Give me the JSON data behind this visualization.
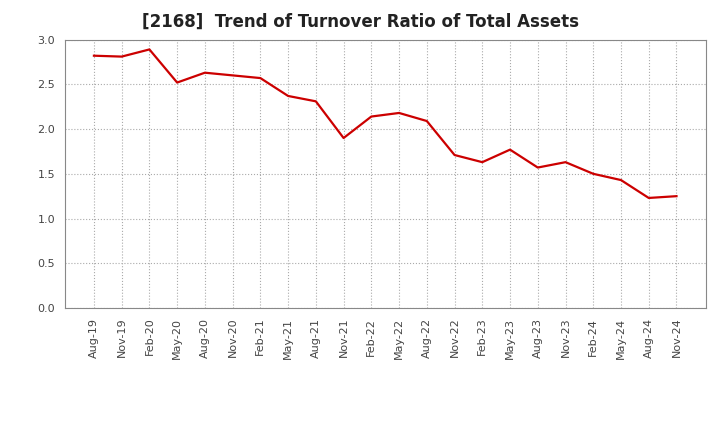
{
  "title": "[2168]  Trend of Turnover Ratio of Total Assets",
  "x_labels": [
    "Aug-19",
    "Nov-19",
    "Feb-20",
    "May-20",
    "Aug-20",
    "Nov-20",
    "Feb-21",
    "May-21",
    "Aug-21",
    "Nov-21",
    "Feb-22",
    "May-22",
    "Aug-22",
    "Nov-22",
    "Feb-23",
    "May-23",
    "Aug-23",
    "Nov-23",
    "Feb-24",
    "May-24",
    "Aug-24",
    "Nov-24"
  ],
  "y_values": [
    2.82,
    2.81,
    2.89,
    2.52,
    2.63,
    2.6,
    2.57,
    2.37,
    2.31,
    1.9,
    2.14,
    2.18,
    2.09,
    1.71,
    1.63,
    1.77,
    1.57,
    1.63,
    1.5,
    1.43,
    1.23,
    1.25
  ],
  "line_color": "#cc0000",
  "line_width": 1.6,
  "ylim": [
    0.0,
    3.0
  ],
  "yticks": [
    0.0,
    0.5,
    1.0,
    1.5,
    2.0,
    2.5,
    3.0
  ],
  "background_color": "#ffffff",
  "grid_color": "#aaaaaa",
  "title_fontsize": 12,
  "tick_fontsize": 8
}
